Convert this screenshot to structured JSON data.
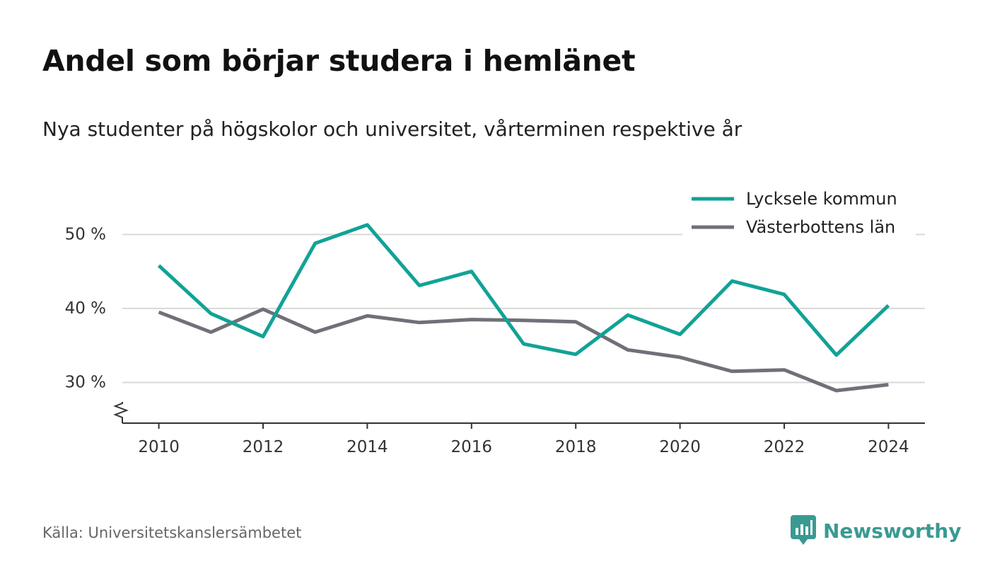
{
  "title": "Andel som börjar studera i hemlänet",
  "subtitle": "Nya studenter på högskolor och universitet, vårterminen respektive år",
  "source": "Källa: Universitetskanslersämbetet",
  "brand": {
    "name": "Newsworthy"
  },
  "colors": {
    "lycksele": "#12a297",
    "vasterbotten": "#707078",
    "grid": "#d9d9d9",
    "axis": "#333333"
  },
  "chart_data": {
    "type": "line",
    "x": [
      2010,
      2011,
      2012,
      2013,
      2014,
      2015,
      2016,
      2017,
      2018,
      2019,
      2020,
      2021,
      2022,
      2023,
      2024
    ],
    "x_ticks": [
      "2010",
      "2012",
      "2014",
      "2016",
      "2018",
      "2020",
      "2022",
      "2024"
    ],
    "y_ticks": [
      {
        "value": 30,
        "label": "30 %"
      },
      {
        "value": 40,
        "label": "40 %"
      },
      {
        "value": 50,
        "label": "50 %"
      }
    ],
    "ylim": [
      24.5,
      53
    ],
    "xlim": [
      2009.3,
      2024.7
    ],
    "axis_break": true,
    "legend_position": "top-right",
    "series": [
      {
        "name": "Lycksele kommun",
        "color": "#12a297",
        "values": [
          45.8,
          39.3,
          36.2,
          48.8,
          51.3,
          43.1,
          45.0,
          35.2,
          33.8,
          39.1,
          36.5,
          43.7,
          41.9,
          33.7,
          40.4
        ]
      },
      {
        "name": "Västerbottens län",
        "color": "#707078",
        "values": [
          39.5,
          36.8,
          39.9,
          36.8,
          39.0,
          38.1,
          38.5,
          38.4,
          38.2,
          34.4,
          33.4,
          31.5,
          31.7,
          28.9,
          29.7
        ]
      }
    ]
  }
}
